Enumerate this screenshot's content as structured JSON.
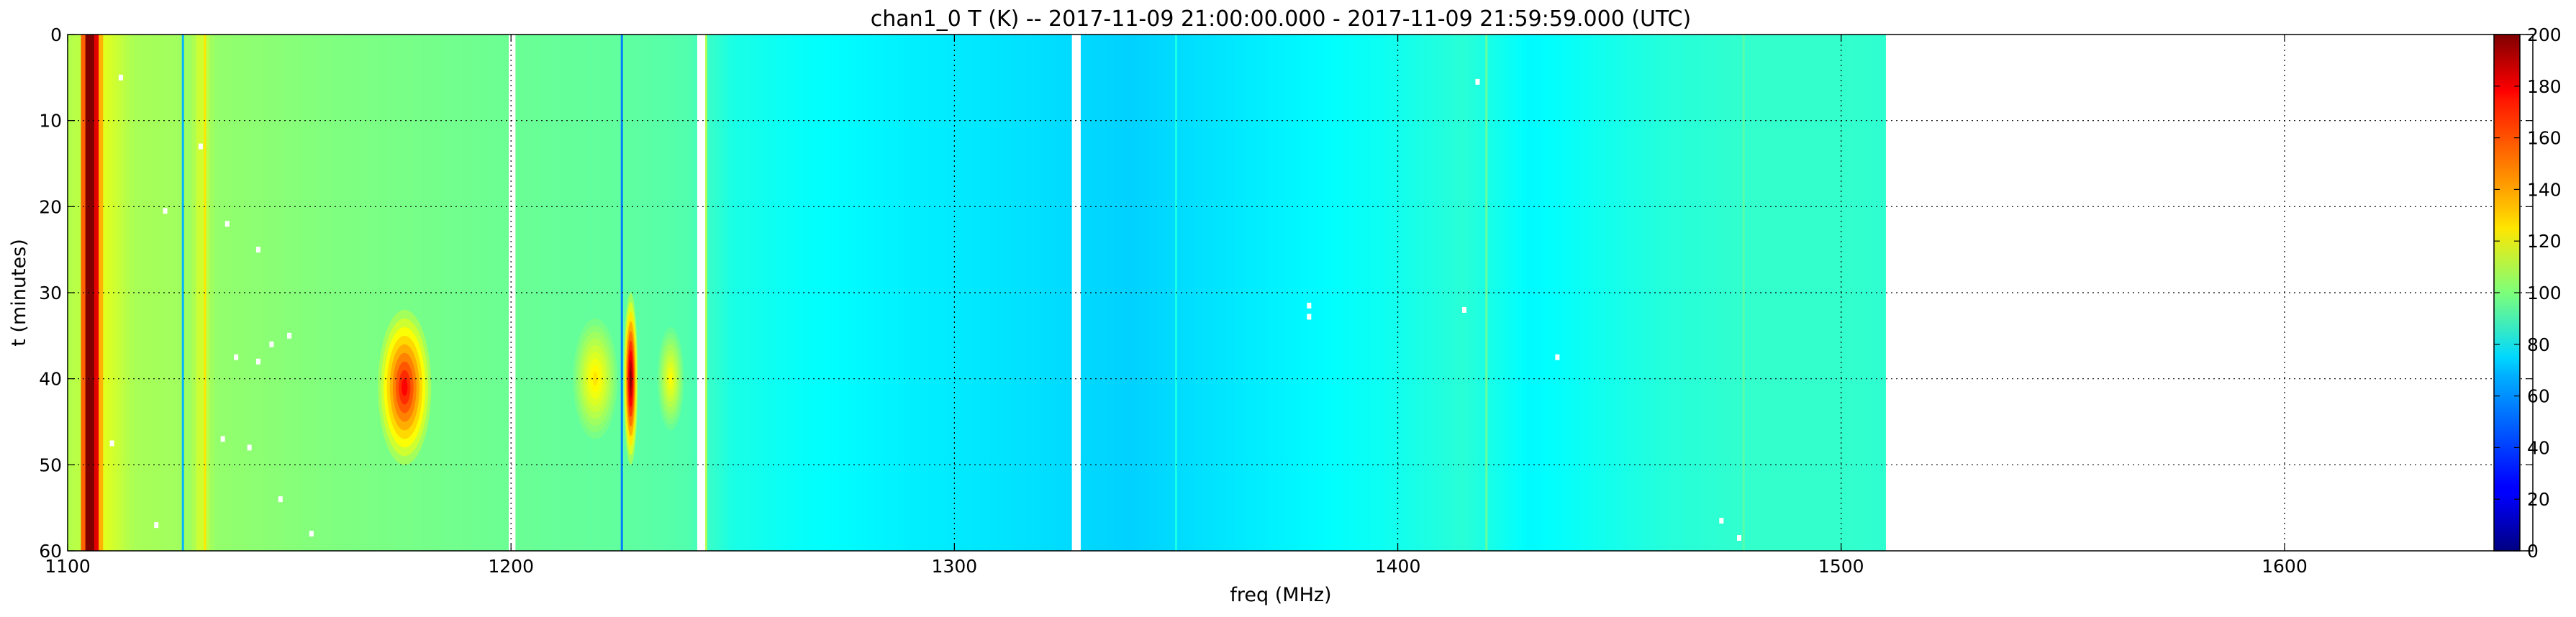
{
  "chart_data": {
    "type": "heatmap",
    "title": "chan1_0 T (K) -- 2017-11-09 21:00:00.000 - 2017-11-09 21:59:59.000 (UTC)",
    "xlabel": "freq (MHz)",
    "ylabel": "t (minutes)",
    "xlim": [
      1100,
      1656
    ],
    "ylim": [
      60,
      0
    ],
    "xticks": [
      1100,
      1200,
      1300,
      1400,
      1500,
      1600
    ],
    "yticks": [
      0,
      10,
      20,
      30,
      40,
      50,
      60
    ],
    "grid": true,
    "colormap": "jet",
    "colorbar": {
      "range": [
        0,
        200
      ],
      "ticks": [
        0,
        20,
        40,
        60,
        80,
        100,
        120,
        140,
        160,
        180,
        200
      ]
    },
    "data_extent": {
      "freq_min": 1100,
      "freq_max": 1510,
      "t_min": 0,
      "t_max": 60
    },
    "background_profile": [
      {
        "freq": 1100,
        "value": 110
      },
      {
        "freq": 1103,
        "value": 112
      },
      {
        "freq": 1104,
        "value": 200
      },
      {
        "freq": 1106,
        "value": 200
      },
      {
        "freq": 1108,
        "value": 120
      },
      {
        "freq": 1115,
        "value": 108
      },
      {
        "freq": 1128,
        "value": 106
      },
      {
        "freq": 1130,
        "value": 118
      },
      {
        "freq": 1133,
        "value": 104
      },
      {
        "freq": 1160,
        "value": 100
      },
      {
        "freq": 1190,
        "value": 97
      },
      {
        "freq": 1210,
        "value": 95
      },
      {
        "freq": 1225,
        "value": 94
      },
      {
        "freq": 1240,
        "value": 91
      },
      {
        "freq": 1250,
        "value": 80
      },
      {
        "freq": 1265,
        "value": 76
      },
      {
        "freq": 1290,
        "value": 72
      },
      {
        "freq": 1310,
        "value": 70
      },
      {
        "freq": 1325,
        "value": 68
      },
      {
        "freq": 1340,
        "value": 66
      },
      {
        "freq": 1360,
        "value": 70
      },
      {
        "freq": 1380,
        "value": 74
      },
      {
        "freq": 1395,
        "value": 77
      },
      {
        "freq": 1405,
        "value": 80
      },
      {
        "freq": 1415,
        "value": 83
      },
      {
        "freq": 1430,
        "value": 74
      },
      {
        "freq": 1445,
        "value": 78
      },
      {
        "freq": 1460,
        "value": 82
      },
      {
        "freq": 1480,
        "value": 85
      },
      {
        "freq": 1500,
        "value": 85
      },
      {
        "freq": 1510,
        "value": 84
      }
    ],
    "vertical_lines": [
      {
        "freq": 1104.5,
        "value": 200
      },
      {
        "freq": 1126,
        "value": 60
      },
      {
        "freq": 1131,
        "value": 130
      },
      {
        "freq": 1225,
        "value": 50
      },
      {
        "freq": 1244,
        "value": 110
      },
      {
        "freq": 1350,
        "value": 80
      },
      {
        "freq": 1420,
        "value": 95
      },
      {
        "freq": 1478,
        "value": 92
      }
    ],
    "blanked_bands": [
      {
        "freq_start": 1199.5,
        "freq_end": 1201
      },
      {
        "freq_start": 1242,
        "freq_end": 1243.8
      },
      {
        "freq_start": 1326.5,
        "freq_end": 1328.5
      }
    ],
    "events": [
      {
        "freq": 1176,
        "t": 41,
        "freq_halfwidth": 6,
        "t_halfwidth": 9,
        "peak": 175
      },
      {
        "freq": 1219,
        "t": 40,
        "freq_halfwidth": 5,
        "t_halfwidth": 7,
        "peak": 130
      },
      {
        "freq": 1227,
        "t": 40,
        "freq_halfwidth": 1.6,
        "t_halfwidth": 10,
        "peak": 200
      },
      {
        "freq": 1236,
        "t": 40,
        "freq_halfwidth": 3,
        "t_halfwidth": 6,
        "peak": 125
      }
    ],
    "missing_points": [
      {
        "freq": 1380,
        "t": 31.5
      },
      {
        "freq": 1380,
        "t": 32.8
      },
      {
        "freq": 1138,
        "t": 37.5
      },
      {
        "freq": 1143,
        "t": 38
      },
      {
        "freq": 1146,
        "t": 36
      },
      {
        "freq": 1150,
        "t": 35
      },
      {
        "freq": 1122,
        "t": 20.5
      },
      {
        "freq": 1112,
        "t": 5
      },
      {
        "freq": 1135,
        "t": 47
      },
      {
        "freq": 1141,
        "t": 48
      },
      {
        "freq": 1155,
        "t": 58
      },
      {
        "freq": 1148,
        "t": 54
      },
      {
        "freq": 1110,
        "t": 47.5
      },
      {
        "freq": 1120,
        "t": 57
      },
      {
        "freq": 1136,
        "t": 22
      },
      {
        "freq": 1143,
        "t": 25
      },
      {
        "freq": 1130,
        "t": 13
      },
      {
        "freq": 1415,
        "t": 32
      },
      {
        "freq": 1436,
        "t": 37.5
      },
      {
        "freq": 1477,
        "t": 58.5
      },
      {
        "freq": 1418,
        "t": 5.5
      },
      {
        "freq": 1473,
        "t": 56.5
      }
    ]
  }
}
